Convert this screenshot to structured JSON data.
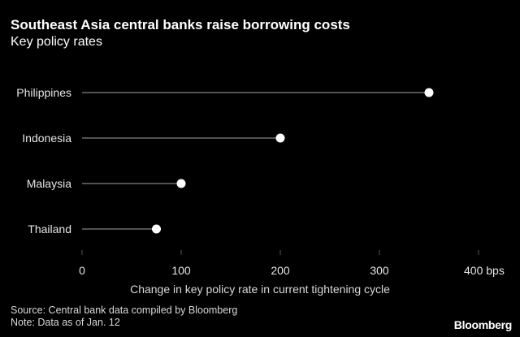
{
  "header": {
    "title": "Southeast Asia central banks raise borrowing costs",
    "subtitle": "Key policy rates"
  },
  "footer": {
    "source": "Source: Central bank data compiled by Bloomberg",
    "note": "Note: Data as of Jan. 12",
    "brand": "Bloomberg"
  },
  "colors": {
    "background": "#000000",
    "text": "#ffffff",
    "line": "#6e6e6e",
    "gridline": "#555555",
    "marker": "#ffffff"
  },
  "chart_data": {
    "type": "lollipop",
    "title": "Southeast Asia central banks raise borrowing costs",
    "subtitle": "Key policy rates",
    "categories": [
      "Philippines",
      "Indonesia",
      "Malaysia",
      "Thailand"
    ],
    "values": [
      350,
      200,
      100,
      75
    ],
    "xlabel": "Change in key policy rate in current tightening cycle",
    "ylabel": "",
    "xlim": [
      0,
      400
    ],
    "x_ticks": [
      0,
      100,
      200,
      300,
      400
    ],
    "x_tick_labels": [
      "0",
      "100",
      "200",
      "300",
      "400 bps"
    ],
    "grid": "vertical tick marks only"
  }
}
